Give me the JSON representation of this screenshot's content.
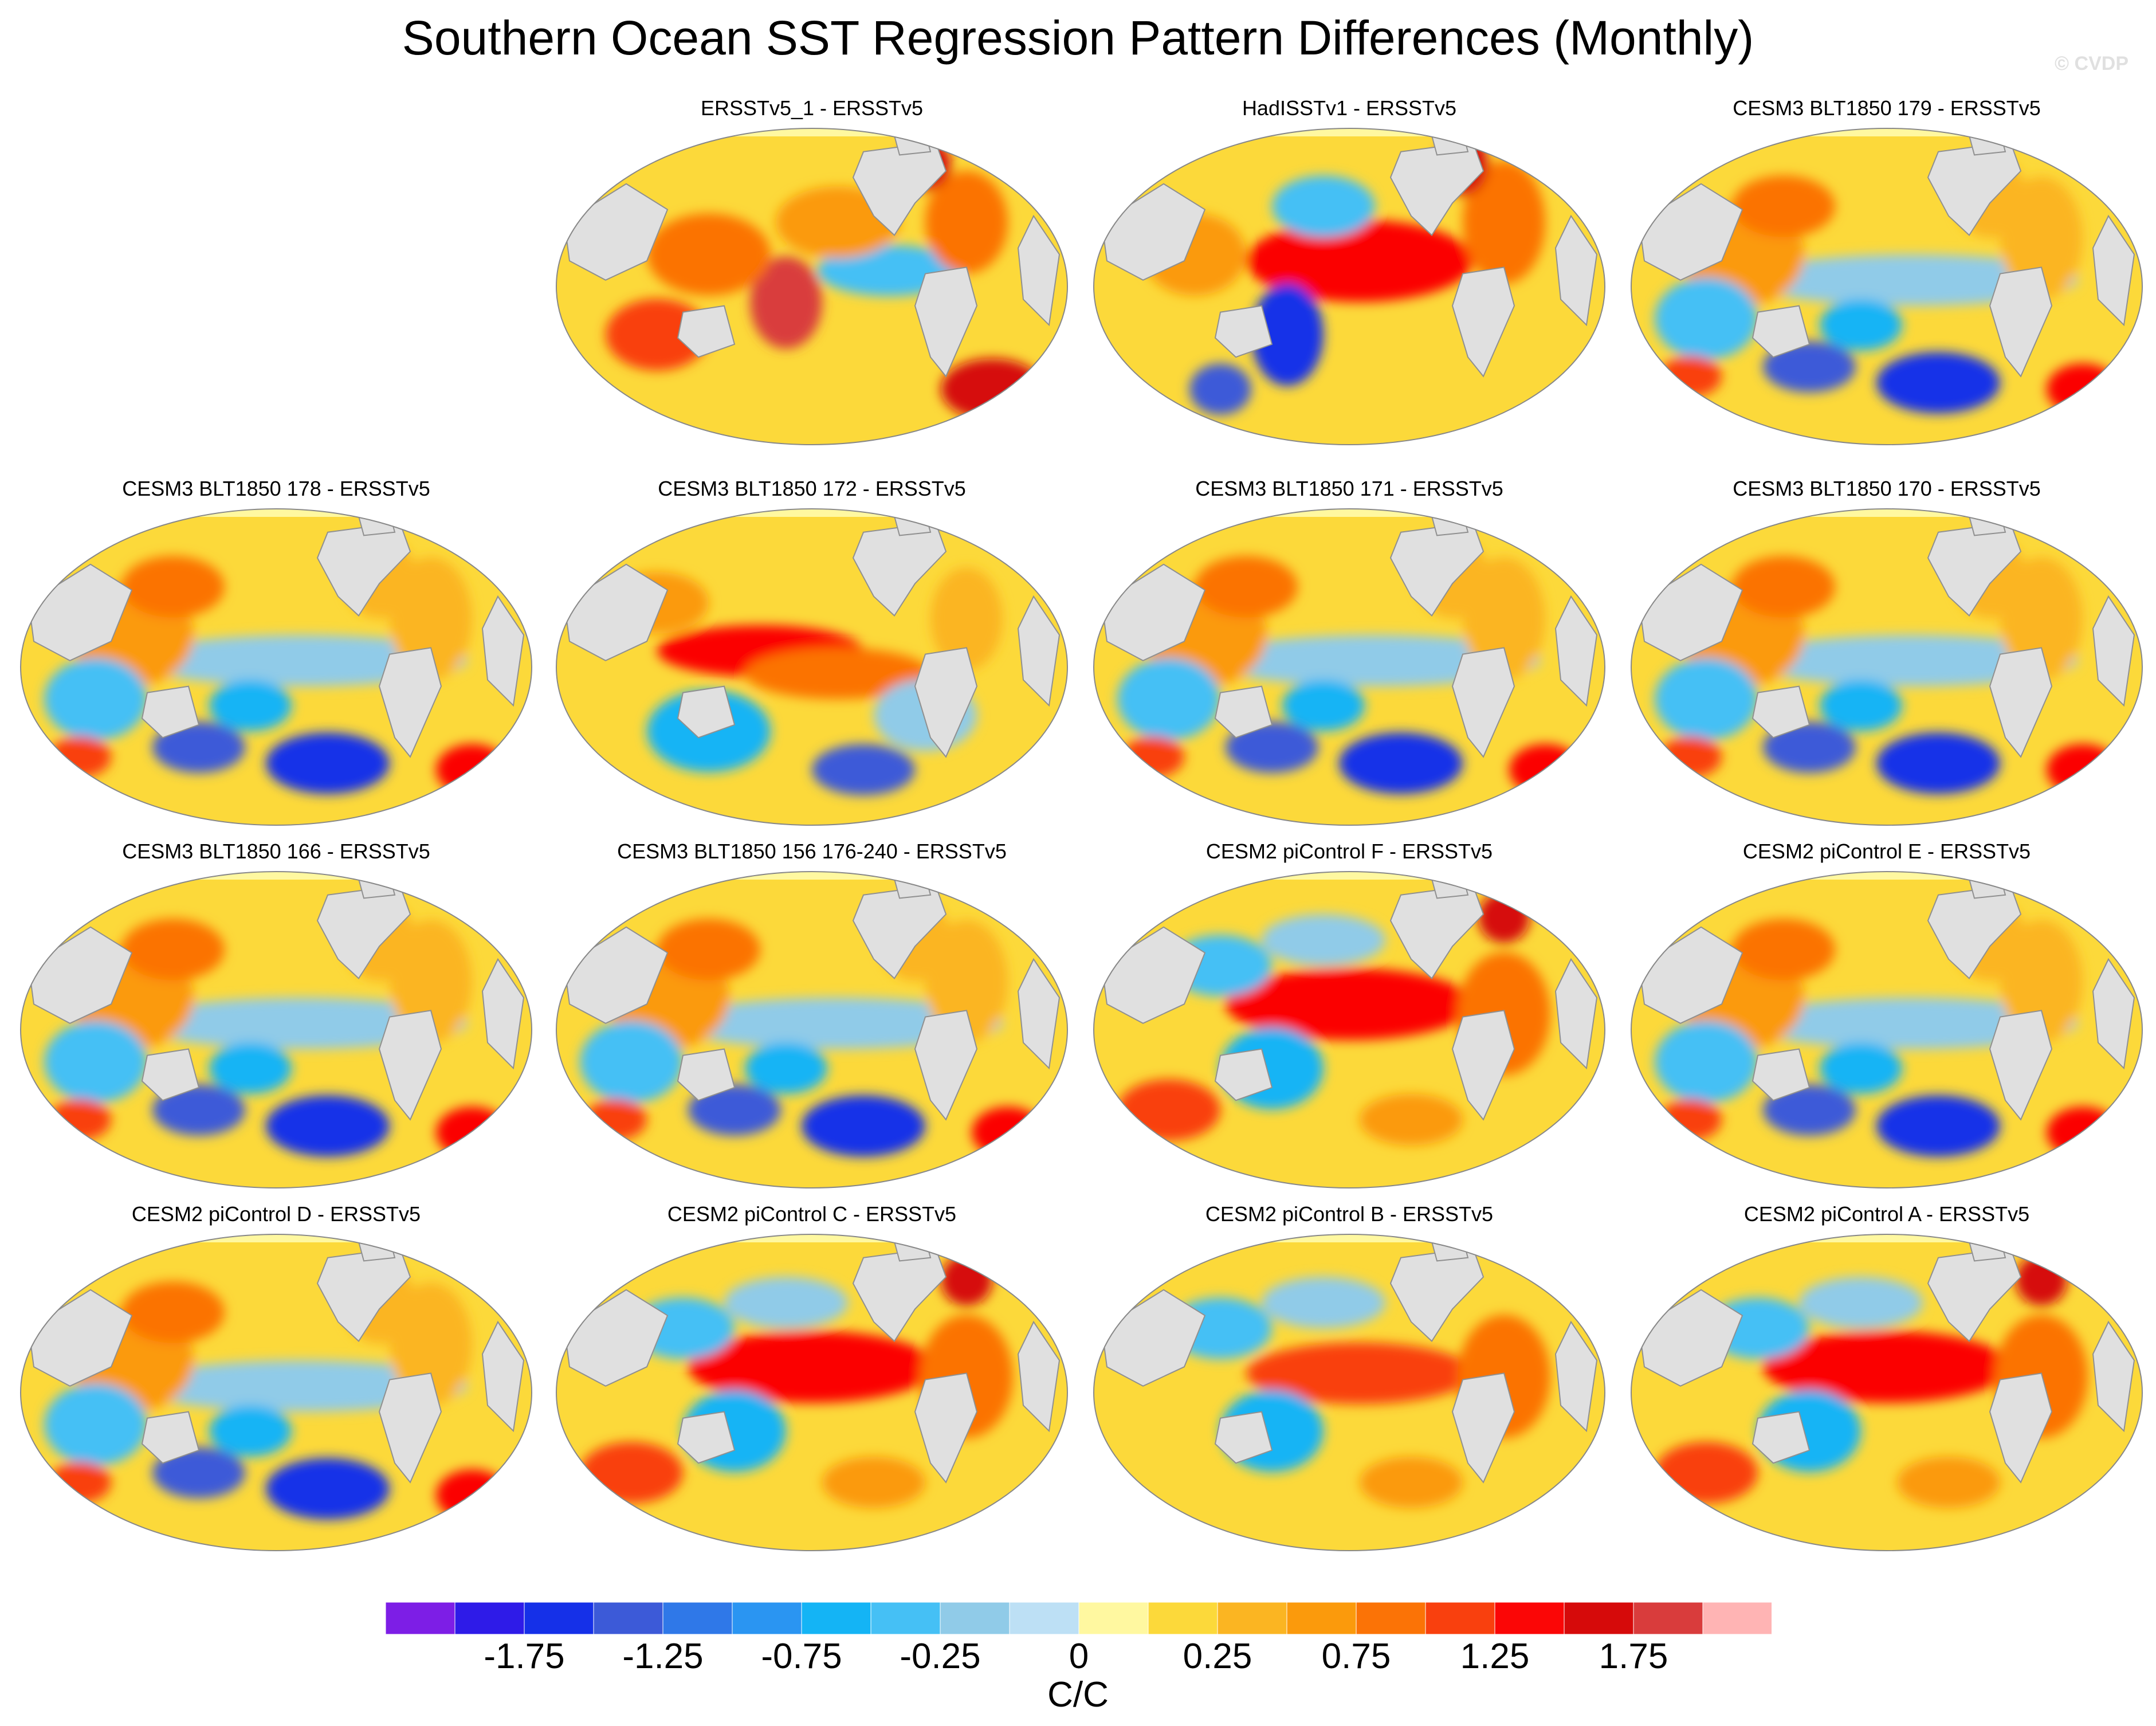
{
  "title": "Southern Ocean SST Regression Pattern Differences (Monthly)",
  "watermark": "© CVDP",
  "panels": [
    {
      "title": "ERSSTv5_1 - ERSSTv5",
      "style": "mixed-warm"
    },
    {
      "title": "HadISSTv1 - ERSSTv5",
      "style": "nino-strong"
    },
    {
      "title": "CESM3 BLT1850 179 - ERSSTv5",
      "style": "cool"
    },
    {
      "title": "CESM3 BLT1850 178 - ERSSTv5",
      "style": "cool"
    },
    {
      "title": "CESM3 BLT1850 172 - ERSSTv5",
      "style": "mixed"
    },
    {
      "title": "CESM3 BLT1850 171 - ERSSTv5",
      "style": "cool"
    },
    {
      "title": "CESM3 BLT1850 170 - ERSSTv5",
      "style": "cool"
    },
    {
      "title": "CESM3 BLT1850 166 - ERSSTv5",
      "style": "cool"
    },
    {
      "title": "CESM3 BLT1850 156 176-240 - ERSSTv5",
      "style": "cool"
    },
    {
      "title": "CESM2 piControl F - ERSSTv5",
      "style": "nino"
    },
    {
      "title": "CESM2 piControl E - ERSSTv5",
      "style": "cool"
    },
    {
      "title": "CESM2 piControl D - ERSSTv5",
      "style": "cool"
    },
    {
      "title": "CESM2 piControl C - ERSSTv5",
      "style": "nino"
    },
    {
      "title": "CESM2 piControl B - ERSSTv5",
      "style": "nino-mild"
    },
    {
      "title": "CESM2 piControl A - ERSSTv5",
      "style": "nino"
    }
  ],
  "colorbar": {
    "colors": [
      "#7d1ee6",
      "#2e1be8",
      "#1530e8",
      "#3c5ad8",
      "#2f78e8",
      "#2a95f2",
      "#14b4f5",
      "#45c0f5",
      "#90cbe8",
      "#bde0f5",
      "#fff8a0",
      "#fcd93a",
      "#fbb522",
      "#fb9a0c",
      "#fb7306",
      "#f9400e",
      "#fb0606",
      "#d60a0a",
      "#d93c3c",
      "#ffb4b4"
    ],
    "labels": [
      "-1.75",
      "-1.25",
      "-0.75",
      "-0.25",
      "0",
      "0.25",
      "0.75",
      "1.25",
      "1.75"
    ],
    "units": "C/C"
  }
}
